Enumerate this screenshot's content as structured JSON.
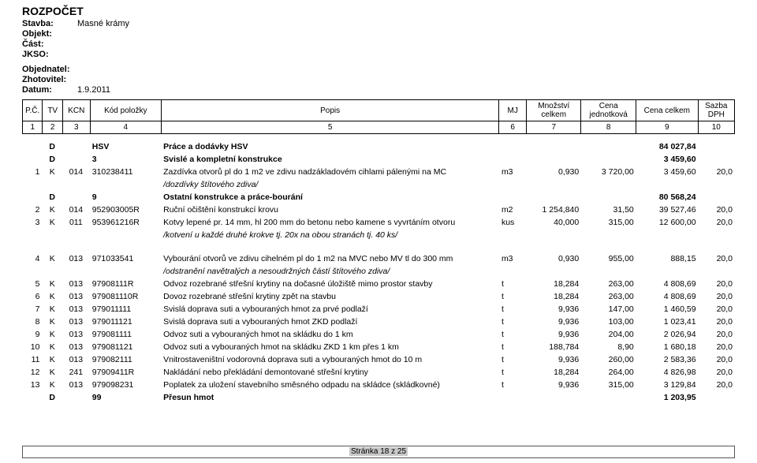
{
  "title": "ROZPOČET",
  "meta": {
    "stavba_label": "Stavba:",
    "stavba": "Masné krámy",
    "objekt_label": "Objekt:",
    "objekt": "",
    "cast_label": "Část:",
    "cast": "",
    "jkso_label": "JKSO:",
    "jkso": "",
    "objednatel_label": "Objednatel:",
    "objednatel": "",
    "zhotovitel_label": "Zhotovitel:",
    "zhotovitel": "",
    "datum_label": "Datum:",
    "datum": "1.9.2011"
  },
  "cols": {
    "h1": "P.Č.",
    "h2": "TV",
    "h3": "KCN",
    "h4": "Kód položky",
    "h5": "Popis",
    "h6": "MJ",
    "h7": "Množství celkem",
    "h8": "Cena jednotková",
    "h9": "Cena celkem",
    "h10": "Sazba DPH",
    "n1": "1",
    "n2": "2",
    "n3": "3",
    "n4": "4",
    "n5": "5",
    "n6": "6",
    "n7": "7",
    "n8": "8",
    "n9": "9",
    "n10": "10"
  },
  "sections": [
    {
      "tv": "D",
      "kcn": "",
      "kod": "HSV",
      "pop": "Práce a dodávky HSV",
      "cc": "84 027,84",
      "bold": true
    },
    {
      "tv": "D",
      "kcn": "",
      "kod": "3",
      "pop": "Svislé a kompletní konstrukce",
      "cc": "3 459,60",
      "bold": true
    }
  ],
  "rows1": [
    {
      "pc": "1",
      "tv": "K",
      "kcn": "014",
      "kod": "310238411",
      "pop": "Zazdívka otvorů pl do 1 m2 ve zdivu nadzákladovém cihlami pálenými na MC",
      "mj": "m3",
      "mnoz": "0,930",
      "cj": "3 720,00",
      "cc": "3 459,60",
      "sd": "20,0",
      "note": "/dozdívky štítového zdiva/"
    }
  ],
  "section9": {
    "tv": "D",
    "kcn": "",
    "kod": "9",
    "pop": "Ostatní konstrukce a práce-bourání",
    "cc": "80 568,24",
    "bold": true
  },
  "rows2": [
    {
      "pc": "2",
      "tv": "K",
      "kcn": "014",
      "kod": "952903005R",
      "pop": "Ruční očištění konstrukcí krovu",
      "mj": "m2",
      "mnoz": "1 254,840",
      "cj": "31,50",
      "cc": "39 527,46",
      "sd": "20,0"
    },
    {
      "pc": "3",
      "tv": "K",
      "kcn": "011",
      "kod": "953961216R",
      "pop": "Kotvy lepené pr. 14 mm, hl 200 mm do betonu nebo kamene s vyvrtáním otvoru",
      "mj": "kus",
      "mnoz": "40,000",
      "cj": "315,00",
      "cc": "12 600,00",
      "sd": "20,0",
      "note": "/kotvení u každé druhé krokve tj. 20x na obou stranách tj. 40 ks/"
    }
  ],
  "rows3": [
    {
      "pc": "4",
      "tv": "K",
      "kcn": "013",
      "kod": "971033541",
      "pop": "Vybourání otvorů ve zdivu cihelném pl do 1 m2 na MVC nebo MV tl do 300 mm",
      "mj": "m3",
      "mnoz": "0,930",
      "cj": "955,00",
      "cc": "888,15",
      "sd": "20,0",
      "note": "/odstranění navětralých a nesoudržných částí štítového zdiva/"
    },
    {
      "pc": "5",
      "tv": "K",
      "kcn": "013",
      "kod": "97908111R",
      "pop": "Odvoz rozebrané střešní krytiny na dočasné úložiště mimo prostor stavby",
      "mj": "t",
      "mnoz": "18,284",
      "cj": "263,00",
      "cc": "4 808,69",
      "sd": "20,0"
    },
    {
      "pc": "6",
      "tv": "K",
      "kcn": "013",
      "kod": "979081110R",
      "pop": "Dovoz rozebrané střešní krytiny zpět na stavbu",
      "mj": "t",
      "mnoz": "18,284",
      "cj": "263,00",
      "cc": "4 808,69",
      "sd": "20,0"
    },
    {
      "pc": "7",
      "tv": "K",
      "kcn": "013",
      "kod": "979011111",
      "pop": "Svislá doprava suti a vybouraných hmot za prvé podlaží",
      "mj": "t",
      "mnoz": "9,936",
      "cj": "147,00",
      "cc": "1 460,59",
      "sd": "20,0"
    },
    {
      "pc": "8",
      "tv": "K",
      "kcn": "013",
      "kod": "979011121",
      "pop": "Svislá doprava suti a vybouraných hmot ZKD podlaží",
      "mj": "t",
      "mnoz": "9,936",
      "cj": "103,00",
      "cc": "1 023,41",
      "sd": "20,0"
    },
    {
      "pc": "9",
      "tv": "K",
      "kcn": "013",
      "kod": "979081111",
      "pop": "Odvoz suti a vybouraných hmot na skládku do 1 km",
      "mj": "t",
      "mnoz": "9,936",
      "cj": "204,00",
      "cc": "2 026,94",
      "sd": "20,0"
    },
    {
      "pc": "10",
      "tv": "K",
      "kcn": "013",
      "kod": "979081121",
      "pop": "Odvoz suti a vybouraných hmot na skládku ZKD 1 km přes 1 km",
      "mj": "t",
      "mnoz": "188,784",
      "cj": "8,90",
      "cc": "1 680,18",
      "sd": "20,0"
    },
    {
      "pc": "11",
      "tv": "K",
      "kcn": "013",
      "kod": "979082111",
      "pop": "Vnitrostaveništní vodorovná doprava suti a vybouraných hmot do 10 m",
      "mj": "t",
      "mnoz": "9,936",
      "cj": "260,00",
      "cc": "2 583,36",
      "sd": "20,0"
    },
    {
      "pc": "12",
      "tv": "K",
      "kcn": "241",
      "kod": "97909411R",
      "pop": "Nakládání nebo překládání demontované střešní krytiny",
      "mj": "t",
      "mnoz": "18,284",
      "cj": "264,00",
      "cc": "4 826,98",
      "sd": "20,0"
    },
    {
      "pc": "13",
      "tv": "K",
      "kcn": "013",
      "kod": "979098231",
      "pop": "Poplatek za uložení stavebního směsného odpadu na skládce (skládkovné)",
      "mj": "t",
      "mnoz": "9,936",
      "cj": "315,00",
      "cc": "3 129,84",
      "sd": "20,0"
    }
  ],
  "section99": {
    "tv": "D",
    "kcn": "",
    "kod": "99",
    "pop": "Přesun hmot",
    "cc": "1 203,95",
    "bold": true
  },
  "footer": "Stránka 18 z 25"
}
